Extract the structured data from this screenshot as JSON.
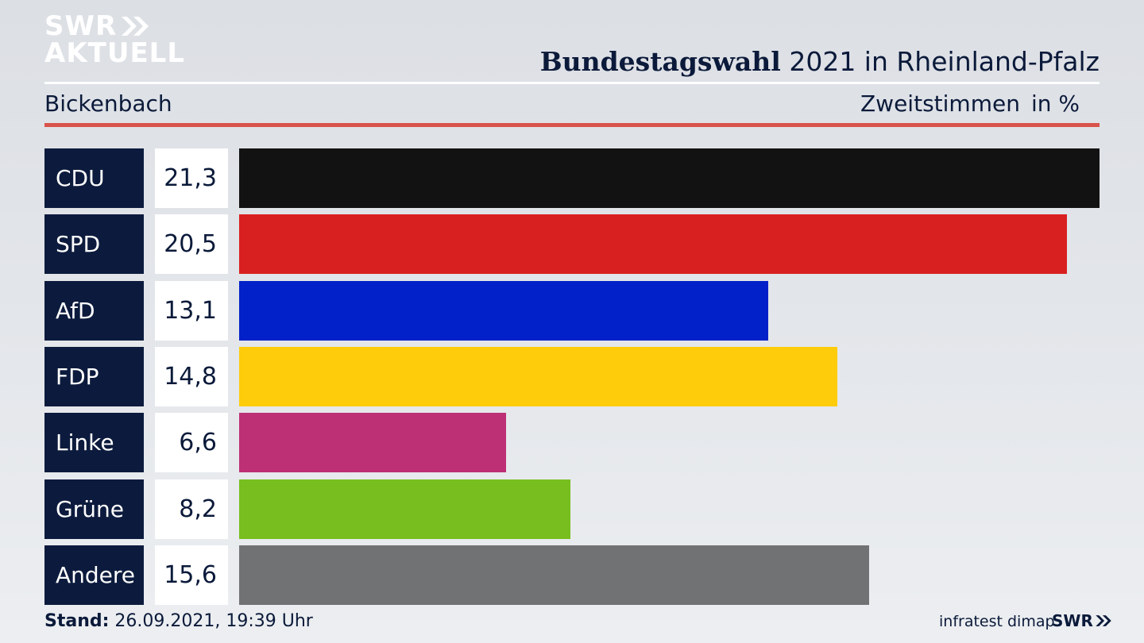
{
  "logo": {
    "line1": "SWR",
    "line2": "AKTUELL"
  },
  "header": {
    "title_bold": "Bundestagswahl",
    "title_rest": "2021 in Rheinland-Pfalz"
  },
  "subheader": {
    "region": "Bickenbach",
    "measure": "Zweitstimmen",
    "unit": "in %"
  },
  "colors": {
    "accent_red": "#d9534a",
    "label_bg": "#0c1b3d"
  },
  "chart_data": {
    "type": "bar",
    "orientation": "horizontal",
    "categories": [
      "CDU",
      "SPD",
      "AfD",
      "FDP",
      "Linke",
      "Grüne",
      "Andere"
    ],
    "values": [
      21.3,
      20.5,
      13.1,
      14.8,
      6.6,
      8.2,
      15.6
    ],
    "value_labels": [
      "21,3",
      "20,5",
      "13,1",
      "14,8",
      "6,6",
      "8,2",
      "15,6"
    ],
    "colors": [
      "#121212",
      "#d92020",
      "#0321c8",
      "#fecc0a",
      "#bd3075",
      "#77be1e",
      "#717274"
    ],
    "title": "Bundestagswahl 2021 in Rheinland-Pfalz",
    "xlim": [
      0,
      21.3
    ]
  },
  "footer": {
    "stand_label": "Stand:",
    "stand_value": "26.09.2021, 19:39 Uhr",
    "source": "infratest dimap",
    "brand": "SWR"
  }
}
